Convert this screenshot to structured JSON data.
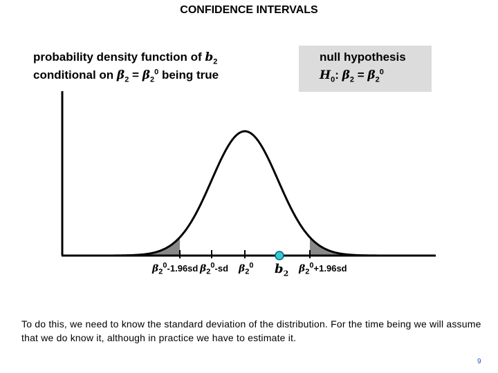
{
  "title": "CONFIDENCE INTERVALS",
  "pdf_label": {
    "line1_text": "probability density function of ",
    "line1_var": "b",
    "line1_sub": "2",
    "line2_text": "conditional on ",
    "beta": "β",
    "sub2": "2",
    "sup0": "0",
    "eq": " = ",
    "being_true": " being true"
  },
  "null_hypothesis": {
    "heading": "null hypothesis",
    "H": "H",
    "H_sub": "0",
    "colon": ": ",
    "beta": "β",
    "sub2": "2",
    "eq": " = ",
    "sup0": "0"
  },
  "ticks": {
    "minus196": {
      "beta": "β",
      "sub": "2",
      "sup": "0",
      "suffix": "-1.96sd"
    },
    "minus1": {
      "beta": "β",
      "sub": "2",
      "sup": "0",
      "suffix": "-sd"
    },
    "center": {
      "beta": "β",
      "sub": "2",
      "sup": "0"
    },
    "b2": {
      "var": "b",
      "sub": "2"
    },
    "plus196": {
      "beta": "β",
      "sub": "2",
      "sup": "0",
      "suffix": "+1.96sd"
    }
  },
  "bottom_text": "To do this, we need to know the standard deviation of the distribution.  For the time being we will assume that we do know it, although in practice we have to estimate it.",
  "page_number": "9",
  "colors": {
    "curve": "#000000",
    "tail_fill": "#888888",
    "marker_fill": "#33cccc",
    "marker_stroke": "#0a5a8a",
    "box_fill": "#dcdcdc"
  }
}
